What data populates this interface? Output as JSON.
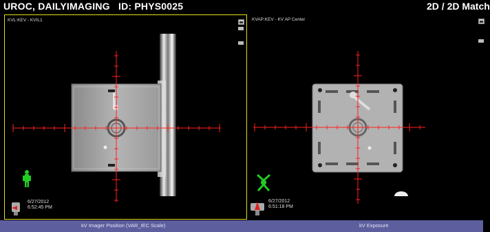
{
  "header": {
    "title": "UROC, DAILYIMAGING   ID: PHYS0025",
    "mode": "2D / 2D Match"
  },
  "viewports": {
    "left": {
      "label": "KVL:KEV - KVIL1",
      "date": "6/27/2012",
      "time": "6:52:45 PM"
    },
    "right": {
      "label": "KVAP:KEV - KV AP Center",
      "date": "6/27/2012",
      "time": "6:51:18 PM"
    }
  },
  "statusbar": {
    "left_label": "kV Imager Position (VAR_IEC Scale)",
    "right_label": "kV Exposure"
  },
  "colors": {
    "crosshair": "#ff2020",
    "active_border": "#e4e01c",
    "orientation_figure": "#22cc22",
    "statusbar": "#5d5e9e"
  },
  "icons": [
    "orientation-figure-icon",
    "gantry-position-icon",
    "window-control-icon"
  ]
}
